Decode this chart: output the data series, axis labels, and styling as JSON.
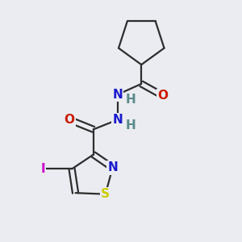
{
  "bg_color": "#eaecf2",
  "bond_color": "#2d2d2d",
  "bond_width": 1.6,
  "dbl_sep": 0.12,
  "atom_colors": {
    "N": "#1a1acc",
    "O": "#cc1a00",
    "S": "#cccc00",
    "I": "#cc00cc",
    "H_gray": "#5a8a8a",
    "C": "#2d2d2d"
  },
  "font_size": 11
}
